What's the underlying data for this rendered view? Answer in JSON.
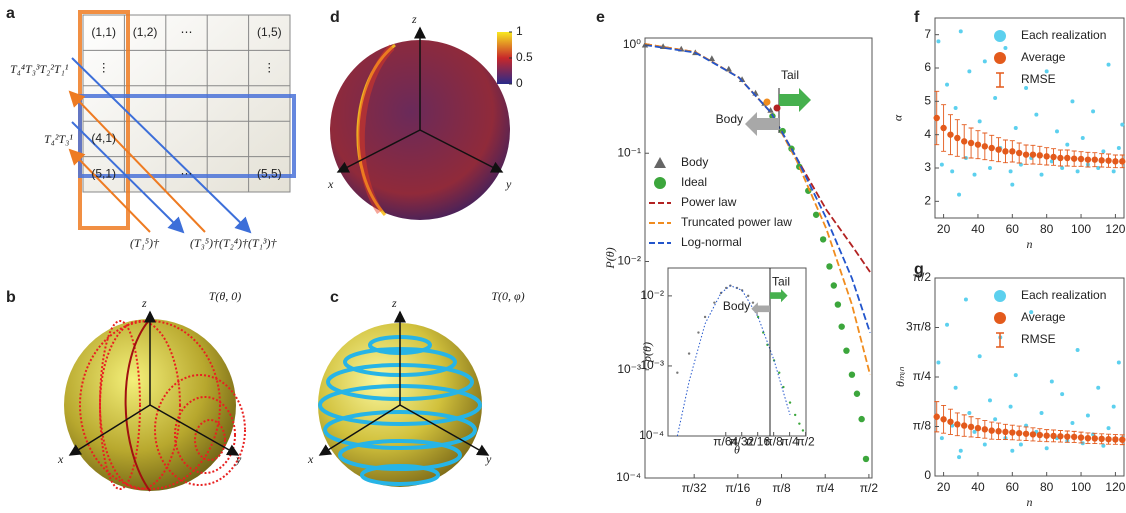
{
  "panel_labels": [
    "a",
    "b",
    "c",
    "d",
    "e",
    "f",
    "g"
  ],
  "panel_a": {
    "cells": [
      "(1,1)",
      "(1,2)",
      "⋯",
      "(1,5)",
      "⋮",
      "⋮",
      "(4,1)",
      "(5,1)",
      "⋯",
      "(5,5)"
    ],
    "left_operators": [
      "T₄⁴T₃³T₂²T₁¹",
      "T₄²T₃¹"
    ],
    "bottom_operators": [
      "(T₁⁵)†",
      "(T₃⁵)†(T₂⁴)†(T₁³)†"
    ]
  },
  "panel_b": {
    "title": "T(θ, 0)",
    "axes": [
      "z",
      "x",
      "y"
    ]
  },
  "panel_c": {
    "title": "T(0, φ)",
    "axes": [
      "z",
      "x",
      "y"
    ]
  },
  "panel_d": {
    "axes": [
      "z",
      "x",
      "y"
    ],
    "colorbar": {
      "lim": [
        0,
        1
      ],
      "ticks": [
        0,
        0.5,
        1
      ]
    }
  },
  "chart_data": [
    {
      "type": "line",
      "log_x": true,
      "log_y": true,
      "xlabel": "θ",
      "ylabel": "P(θ)",
      "xlim": [
        0.045,
        1.65
      ],
      "ylim": [
        0.0001,
        1.16
      ],
      "xticks": [
        {
          "value": 0.0982,
          "label": "π/32"
        },
        {
          "value": 0.1963,
          "label": "π/16"
        },
        {
          "value": 0.3927,
          "label": "π/8"
        },
        {
          "value": 0.7854,
          "label": "π/4"
        },
        {
          "value": 1.5708,
          "label": "π/2"
        }
      ],
      "yticks": [
        {
          "value": 0.0001,
          "label": "10⁻⁴"
        },
        {
          "value": 0.001,
          "label": "10⁻³"
        },
        {
          "value": 0.01,
          "label": "10⁻²"
        },
        {
          "value": 0.1,
          "label": "10⁻¹"
        },
        {
          "value": 1,
          "label": "10⁰"
        }
      ],
      "annotations": [
        "Tail",
        "Body"
      ],
      "series": [
        {
          "name": "Body",
          "style": "triangle",
          "color": "#666666",
          "x": [
            0.045,
            0.06,
            0.08,
            0.1,
            0.13,
            0.17,
            0.21,
            0.26,
            0.3,
            0.33
          ],
          "values": [
            1.0,
            0.97,
            0.92,
            0.85,
            0.75,
            0.6,
            0.48,
            0.36,
            0.29,
            0.25
          ]
        },
        {
          "name": "Ideal",
          "style": "circle",
          "color": "#3ca63c",
          "x": [
            0.34,
            0.4,
            0.46,
            0.52,
            0.6,
            0.68,
            0.76,
            0.84,
            0.9,
            0.96,
            1.02,
            1.1,
            1.2,
            1.3,
            1.4,
            1.5
          ],
          "values": [
            0.22,
            0.16,
            0.11,
            0.075,
            0.045,
            0.027,
            0.016,
            0.009,
            0.006,
            0.004,
            0.0025,
            0.0015,
            0.0009,
            0.0006,
            0.00035,
            0.00015
          ]
        },
        {
          "name": "Power law",
          "style": "dash",
          "color": "#b22222",
          "x": [
            0.045,
            0.1,
            0.2,
            0.33,
            0.5,
            0.8,
            1.2,
            1.6
          ],
          "values": [
            1.02,
            0.86,
            0.5,
            0.24,
            0.09,
            0.03,
            0.014,
            0.008
          ]
        },
        {
          "name": "Truncated power law",
          "style": "dash",
          "color": "#f08c1e",
          "x": [
            0.045,
            0.1,
            0.2,
            0.33,
            0.5,
            0.8,
            1.2,
            1.6
          ],
          "values": [
            1.02,
            0.86,
            0.5,
            0.24,
            0.085,
            0.02,
            0.004,
            0.0009
          ]
        },
        {
          "name": "Log-normal",
          "style": "dash",
          "color": "#2255cc",
          "x": [
            0.045,
            0.1,
            0.2,
            0.33,
            0.5,
            0.8,
            1.2,
            1.6
          ],
          "values": [
            1.0,
            0.85,
            0.5,
            0.24,
            0.09,
            0.025,
            0.007,
            0.0022
          ]
        }
      ]
    },
    {
      "type": "line",
      "log_x": true,
      "log_y": true,
      "xlabel": "θ",
      "ylabel": "p(θ)",
      "xlim": [
        0.004,
        1.6
      ],
      "ylim": [
        0.0001,
        0.025
      ],
      "xticks": [
        {
          "value": 0.0491,
          "label": "π/64"
        },
        {
          "value": 0.0982,
          "label": "π/32"
        },
        {
          "value": 0.1963,
          "label": "π/16"
        },
        {
          "value": 0.3927,
          "label": "π/8"
        },
        {
          "value": 0.7854,
          "label": "π/4"
        },
        {
          "value": 1.5708,
          "label": "π/2"
        }
      ],
      "yticks": [
        {
          "value": 0.0001,
          "label": "10⁻⁴"
        },
        {
          "value": 0.001,
          "label": "10⁻³"
        },
        {
          "value": 0.01,
          "label": "10⁻²"
        }
      ],
      "annotations": [
        "Tail",
        "Body"
      ],
      "series": [
        {
          "style": "dot",
          "color": "#777777",
          "x": [
            0.006,
            0.01,
            0.015,
            0.02,
            0.03,
            0.04,
            0.05,
            0.06,
            0.08,
            0.1,
            0.13,
            0.16
          ],
          "values": [
            0.0008,
            0.0015,
            0.003,
            0.005,
            0.008,
            0.011,
            0.013,
            0.014,
            0.013,
            0.012,
            0.01,
            0.008
          ]
        },
        {
          "style": "dot",
          "color": "#3ca63c",
          "x": [
            0.2,
            0.25,
            0.3,
            0.4,
            0.5,
            0.6,
            0.8,
            1.0,
            1.2,
            1.4
          ],
          "values": [
            0.005,
            0.003,
            0.002,
            0.0012,
            0.0008,
            0.0005,
            0.0003,
            0.0002,
            0.00015,
            0.00012
          ]
        },
        {
          "style": "dotted",
          "color": "#2255cc",
          "x": [
            0.006,
            0.01,
            0.02,
            0.04,
            0.06,
            0.1,
            0.2,
            0.4,
            0.8
          ],
          "values": [
            0.0001,
            0.0006,
            0.004,
            0.011,
            0.014,
            0.012,
            0.005,
            0.0012,
            0.0002
          ]
        }
      ]
    },
    {
      "type": "scatter",
      "xlabel": "n",
      "ylabel": "α",
      "xlim": [
        15,
        125
      ],
      "ylim": [
        1.5,
        7.5
      ],
      "xticks": [
        20,
        40,
        60,
        80,
        100,
        120
      ],
      "yticks": [
        2,
        3,
        4,
        5,
        6,
        7
      ],
      "series": [
        {
          "name": "Each realization",
          "style": "circle",
          "color": "#5cd0ee",
          "x": [
            17,
            19,
            22,
            25,
            27,
            30,
            33,
            35,
            38,
            41,
            44,
            47,
            50,
            53,
            56,
            59,
            62,
            65,
            68,
            71,
            74,
            77,
            80,
            83,
            86,
            89,
            92,
            95,
            98,
            101,
            104,
            107,
            110,
            113,
            116,
            119,
            122,
            124,
            29,
            60
          ],
          "values": [
            6.8,
            3.1,
            5.5,
            2.9,
            4.8,
            7.1,
            3.3,
            5.9,
            2.8,
            4.4,
            6.2,
            3.0,
            5.1,
            3.6,
            6.6,
            2.9,
            4.2,
            3.1,
            5.4,
            3.3,
            4.6,
            2.8,
            5.9,
            3.2,
            4.1,
            3.0,
            3.7,
            5.0,
            2.9,
            3.9,
            3.1,
            4.7,
            3.0,
            3.5,
            6.1,
            2.9,
            3.6,
            4.3,
            2.2,
            2.5
          ]
        },
        {
          "name": "Average",
          "style": "circle",
          "color": "#e35a1c",
          "x": [
            16,
            20,
            24,
            28,
            32,
            36,
            40,
            44,
            48,
            52,
            56,
            60,
            64,
            68,
            72,
            76,
            80,
            84,
            88,
            92,
            96,
            100,
            104,
            108,
            112,
            116,
            120,
            124
          ],
          "values": [
            4.5,
            4.2,
            4.0,
            3.9,
            3.8,
            3.75,
            3.7,
            3.65,
            3.6,
            3.55,
            3.5,
            3.5,
            3.45,
            3.4,
            3.4,
            3.38,
            3.35,
            3.33,
            3.3,
            3.3,
            3.28,
            3.27,
            3.25,
            3.25,
            3.23,
            3.22,
            3.2,
            3.2
          ]
        },
        {
          "name": "RMSE",
          "style": "errorbar",
          "color": "#e35a1c",
          "values": [
            0.8,
            0.7,
            0.6,
            0.55,
            0.5,
            0.45,
            0.42,
            0.4,
            0.38,
            0.36,
            0.34,
            0.32,
            0.3,
            0.29,
            0.28,
            0.27,
            0.26,
            0.25,
            0.24,
            0.24,
            0.23,
            0.22,
            0.22,
            0.21,
            0.2,
            0.2,
            0.19,
            0.19
          ]
        }
      ]
    },
    {
      "type": "scatter",
      "xlabel": "n",
      "ylabel": "θₘᵢₙ",
      "xlim": [
        15,
        125
      ],
      "ylim": [
        0,
        1.5708
      ],
      "xticks": [
        20,
        40,
        60,
        80,
        100,
        120
      ],
      "yticks": [
        0,
        {
          "value": 0.3927,
          "label": "π/8"
        },
        {
          "value": 0.7854,
          "label": "π/4"
        },
        {
          "value": 1.1781,
          "label": "3π/8"
        },
        {
          "value": 1.5708,
          "label": "π/2"
        }
      ],
      "series": [
        {
          "name": "Each realization",
          "style": "circle",
          "color": "#5cd0ee",
          "x": [
            17,
            19,
            22,
            25,
            27,
            30,
            33,
            35,
            38,
            41,
            44,
            47,
            50,
            53,
            56,
            59,
            62,
            65,
            68,
            71,
            74,
            77,
            80,
            83,
            86,
            89,
            92,
            95,
            98,
            101,
            104,
            107,
            110,
            113,
            116,
            119,
            122,
            124,
            29,
            60
          ],
          "values": [
            0.9,
            0.3,
            1.2,
            0.4,
            0.7,
            0.2,
            1.4,
            0.5,
            0.35,
            0.95,
            0.25,
            0.6,
            0.45,
            1.1,
            0.3,
            0.55,
            0.8,
            0.25,
            0.4,
            1.3,
            0.35,
            0.5,
            0.22,
            0.75,
            0.3,
            0.65,
            0.28,
            0.42,
            1.0,
            0.26,
            0.48,
            0.33,
            0.7,
            0.24,
            0.38,
            0.55,
            0.9,
            0.3,
            0.15,
            0.2
          ]
        },
        {
          "name": "Average",
          "style": "circle",
          "color": "#e35a1c",
          "x": [
            16,
            20,
            24,
            28,
            32,
            36,
            40,
            44,
            48,
            52,
            56,
            60,
            64,
            68,
            72,
            76,
            80,
            84,
            88,
            92,
            96,
            100,
            104,
            108,
            112,
            116,
            120,
            124
          ],
          "values": [
            0.47,
            0.45,
            0.43,
            0.41,
            0.4,
            0.39,
            0.38,
            0.37,
            0.36,
            0.355,
            0.35,
            0.345,
            0.34,
            0.335,
            0.33,
            0.325,
            0.32,
            0.318,
            0.315,
            0.312,
            0.31,
            0.305,
            0.3,
            0.298,
            0.295,
            0.292,
            0.29,
            0.288
          ]
        },
        {
          "name": "RMSE",
          "style": "errorbar",
          "color": "#e35a1c",
          "values": [
            0.12,
            0.11,
            0.1,
            0.09,
            0.085,
            0.08,
            0.075,
            0.07,
            0.068,
            0.065,
            0.06,
            0.058,
            0.056,
            0.054,
            0.052,
            0.05,
            0.048,
            0.047,
            0.046,
            0.045,
            0.044,
            0.043,
            0.042,
            0.041,
            0.04,
            0.04,
            0.039,
            0.039
          ]
        }
      ]
    }
  ]
}
